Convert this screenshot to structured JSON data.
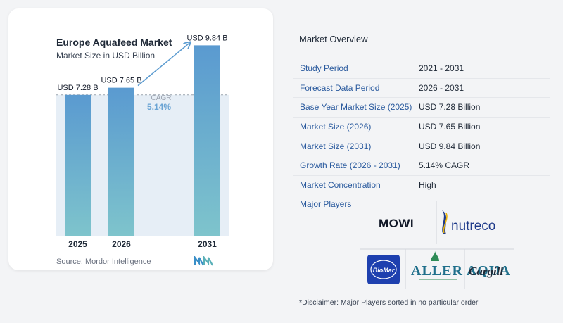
{
  "header": {
    "title": "Europe Aquafeed Market",
    "subtitle": "Market Size in USD Billion"
  },
  "chart_data": {
    "type": "bar",
    "categories": [
      "2025",
      "2026",
      "2031"
    ],
    "values": [
      7.28,
      7.65,
      9.84
    ],
    "value_labels": [
      "USD 7.28 B",
      "USD 7.65 B",
      "USD 9.84 B"
    ],
    "cagr_label": "CAGR",
    "cagr_value": "5.14%",
    "ylim": [
      0,
      10
    ],
    "colors": {
      "bar_top": "#5a9ad0",
      "bar_bottom": "#7ec4cc",
      "band": "#e6eef6",
      "arrow": "#5b9bd0",
      "cagr": "#6aa4d4"
    }
  },
  "source": "Source:  Mordor Intelligence",
  "overview": {
    "title": "Market Overview",
    "rows": [
      {
        "label": "Study Period",
        "value": "2021 - 2031"
      },
      {
        "label": "Forecast Data Period",
        "value": "2026 - 2031"
      },
      {
        "label": "Base Year Market Size (2025)",
        "value": "USD 7.28 Billion"
      },
      {
        "label": "Market Size (2026)",
        "value": "USD 7.65 Billion"
      },
      {
        "label": "Market Size (2031)",
        "value": "USD 9.84 Billion"
      },
      {
        "label": "Growth Rate (2026 - 2031)",
        "value": "5.14% CAGR"
      },
      {
        "label": "Market Concentration",
        "value": "High"
      }
    ]
  },
  "players": {
    "label": "Major Players",
    "logos": [
      "MOWI",
      "nutreco",
      "BioMar",
      "ALLER AQUA",
      "Cargill"
    ]
  },
  "disclaimer": "*Disclaimer: Major Players sorted in no particular order"
}
